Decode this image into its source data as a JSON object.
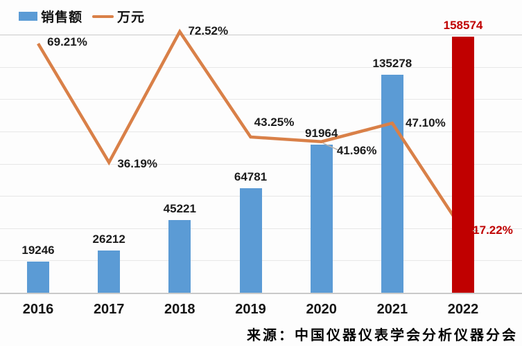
{
  "chart_data": {
    "type": "bar",
    "title": "",
    "categories": [
      "2016",
      "2017",
      "2018",
      "2019",
      "2020",
      "2021",
      "2022"
    ],
    "series": [
      {
        "name": "销售额",
        "type": "bar",
        "values": [
          19246,
          26212,
          45221,
          64781,
          91964,
          135278,
          158574
        ],
        "labels": [
          "19246",
          "26212",
          "45221",
          "64781",
          "91964",
          "135278",
          "158574"
        ],
        "highlight_index": 6
      },
      {
        "name": "万元",
        "type": "line",
        "values": [
          69.21,
          36.19,
          72.52,
          43.25,
          41.96,
          47.1,
          17.22
        ],
        "labels": [
          "69.21%",
          "36.19%",
          "72.52%",
          "43.25%",
          "41.96%",
          "47.10%",
          "17.22%"
        ],
        "highlight_index": 6
      }
    ],
    "ylim_left": [
      0,
      160000
    ],
    "ylim_right": [
      0,
      71.7
    ],
    "grid": true,
    "gridline_count": 8,
    "legend_position": "top-left",
    "xlabel": "",
    "ylabel": ""
  },
  "colors": {
    "bar_blue": "#5b9bd5",
    "bar_highlight": "#c00000",
    "line_orange": "#d98048",
    "label_dark": "#1c1c1c",
    "label_red": "#c00000",
    "gridline": "#e7e7e7",
    "axis_line": "#c9c9c9"
  },
  "source_note": "来源：中国仪器仪表学会分析仪器分会"
}
